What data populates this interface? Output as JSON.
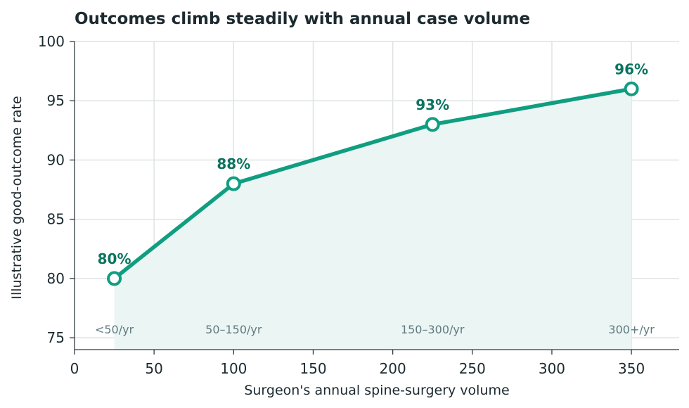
{
  "chart_data": {
    "type": "line",
    "title": "Outcomes climb steadily with annual case volume",
    "xlabel": "Surgeon's annual spine-surgery volume",
    "ylabel": "Illustrative good-outcome rate",
    "xlim": [
      0,
      380
    ],
    "ylim": [
      74,
      100
    ],
    "xticks": [
      0,
      50,
      100,
      150,
      200,
      250,
      300,
      350
    ],
    "yticks": [
      75,
      80,
      85,
      90,
      95,
      100
    ],
    "grid": true,
    "legend": "none",
    "series": [
      {
        "x": [
          25,
          100,
          225,
          350
        ],
        "y": [
          80,
          88,
          93,
          96
        ],
        "labels": [
          "80%",
          "88%",
          "93%",
          "96%"
        ]
      }
    ],
    "annotations": [
      {
        "text": "<50/yr",
        "x": 25
      },
      {
        "text": "50–150/yr",
        "x": 100
      },
      {
        "text": "150–300/yr",
        "x": 225
      },
      {
        "text": "300+/yr",
        "x": 350
      }
    ],
    "colors": {
      "line": "#0f9e80",
      "fill": "#ebf5f3",
      "label": "#0b7460",
      "grid": "#dfe3e4",
      "axis": "#2f3b40",
      "annotation": "#5f7a80"
    }
  }
}
